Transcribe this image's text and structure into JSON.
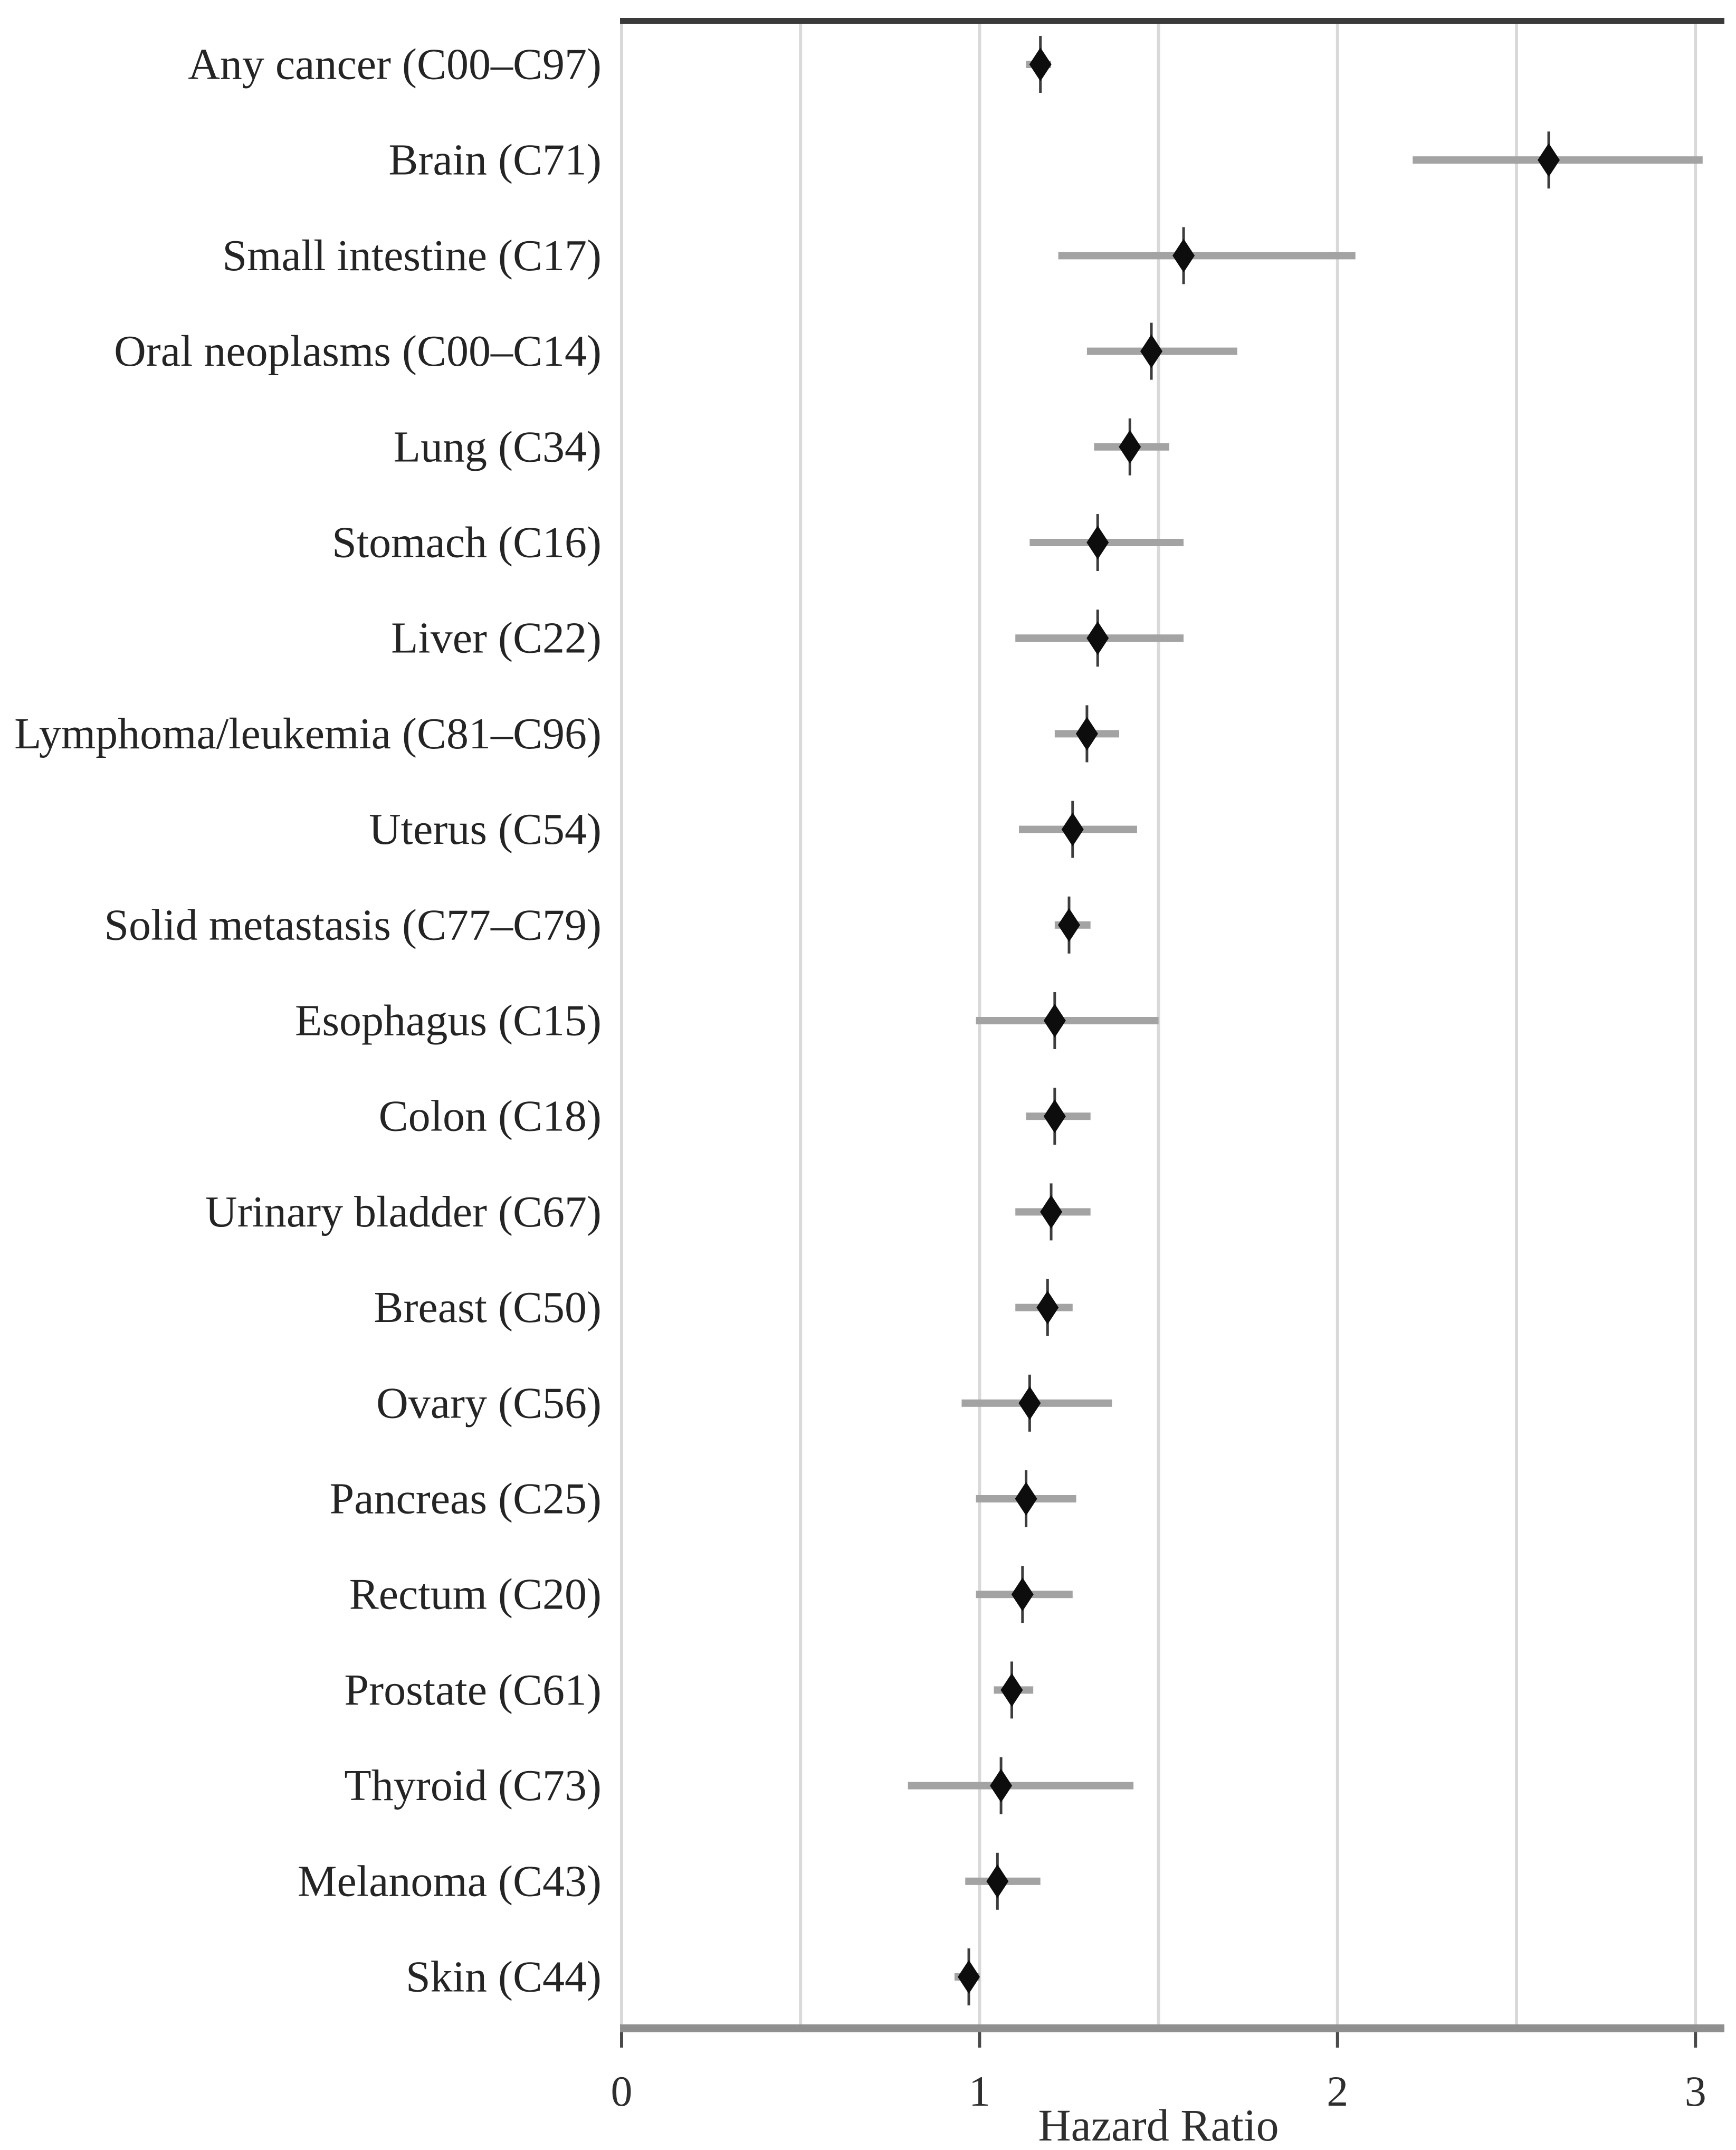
{
  "chart_data": {
    "type": "scatter",
    "variant": "forest-plot",
    "title": "",
    "xlabel": "Hazard Ratio",
    "ylabel": "",
    "xlim": [
      0,
      3.07
    ],
    "xticks": [
      0,
      1,
      2,
      3
    ],
    "gridline_step": 0.5,
    "grid": true,
    "legend": "none",
    "categories": [
      "Any cancer (C00–C97)",
      "Brain (C71)",
      "Small intestine (C17)",
      "Oral neoplasms (C00–C14)",
      "Lung (C34)",
      "Stomach (C16)",
      "Liver (C22)",
      "Lymphoma/leukemia (C81–C96)",
      "Uterus (C54)",
      "Solid metastasis (C77–C79)",
      "Esophagus (C15)",
      "Colon (C18)",
      "Urinary bladder (C67)",
      "Breast (C50)",
      "Ovary (C56)",
      "Pancreas (C25)",
      "Rectum (C20)",
      "Prostate (C61)",
      "Thyroid (C73)",
      "Melanoma (C43)",
      "Skin (C44)"
    ],
    "series": [
      {
        "name": "hazard_ratio",
        "points": [
          {
            "label": "Any cancer (C00–C97)",
            "hr": 1.17,
            "ci_low": 1.13,
            "ci_high": 1.2
          },
          {
            "label": "Brain (C71)",
            "hr": 2.59,
            "ci_low": 2.21,
            "ci_high": 3.02
          },
          {
            "label": "Small intestine (C17)",
            "hr": 1.57,
            "ci_low": 1.22,
            "ci_high": 2.05
          },
          {
            "label": "Oral neoplasms (C00–C14)",
            "hr": 1.48,
            "ci_low": 1.3,
            "ci_high": 1.72
          },
          {
            "label": "Lung (C34)",
            "hr": 1.42,
            "ci_low": 1.32,
            "ci_high": 1.53
          },
          {
            "label": "Stomach (C16)",
            "hr": 1.33,
            "ci_low": 1.14,
            "ci_high": 1.57
          },
          {
            "label": "Liver (C22)",
            "hr": 1.33,
            "ci_low": 1.1,
            "ci_high": 1.57
          },
          {
            "label": "Lymphoma/leukemia (C81–C96)",
            "hr": 1.3,
            "ci_low": 1.21,
            "ci_high": 1.39
          },
          {
            "label": "Uterus (C54)",
            "hr": 1.26,
            "ci_low": 1.11,
            "ci_high": 1.44
          },
          {
            "label": "Solid metastasis (C77–C79)",
            "hr": 1.25,
            "ci_low": 1.21,
            "ci_high": 1.31
          },
          {
            "label": "Esophagus (C15)",
            "hr": 1.21,
            "ci_low": 0.99,
            "ci_high": 1.5
          },
          {
            "label": "Colon (C18)",
            "hr": 1.21,
            "ci_low": 1.13,
            "ci_high": 1.31
          },
          {
            "label": "Urinary bladder (C67)",
            "hr": 1.2,
            "ci_low": 1.1,
            "ci_high": 1.31
          },
          {
            "label": "Breast (C50)",
            "hr": 1.19,
            "ci_low": 1.1,
            "ci_high": 1.26
          },
          {
            "label": "Ovary (C56)",
            "hr": 1.14,
            "ci_low": 0.95,
            "ci_high": 1.37
          },
          {
            "label": "Pancreas (C25)",
            "hr": 1.13,
            "ci_low": 0.99,
            "ci_high": 1.27
          },
          {
            "label": "Rectum (C20)",
            "hr": 1.12,
            "ci_low": 0.99,
            "ci_high": 1.26
          },
          {
            "label": "Prostate (C61)",
            "hr": 1.09,
            "ci_low": 1.04,
            "ci_high": 1.15
          },
          {
            "label": "Thyroid (C73)",
            "hr": 1.06,
            "ci_low": 0.8,
            "ci_high": 1.43
          },
          {
            "label": "Melanoma (C43)",
            "hr": 1.05,
            "ci_low": 0.96,
            "ci_high": 1.17
          },
          {
            "label": "Skin (C44)",
            "hr": 0.97,
            "ci_low": 0.93,
            "ci_high": 1.0
          }
        ]
      }
    ]
  },
  "colors": {
    "marker": "#0d0d0d",
    "whisker": "#3d3d3d",
    "ci_bar": "#a3a3a3",
    "gridline": "#d9d9d9",
    "frame_top": "#3a3a3a",
    "axis_bar": "#8f8f8f",
    "tick": "#4a4a4a",
    "label_text": "#242424",
    "tick_text": "#2e2e2e",
    "background": "#ffffff"
  }
}
